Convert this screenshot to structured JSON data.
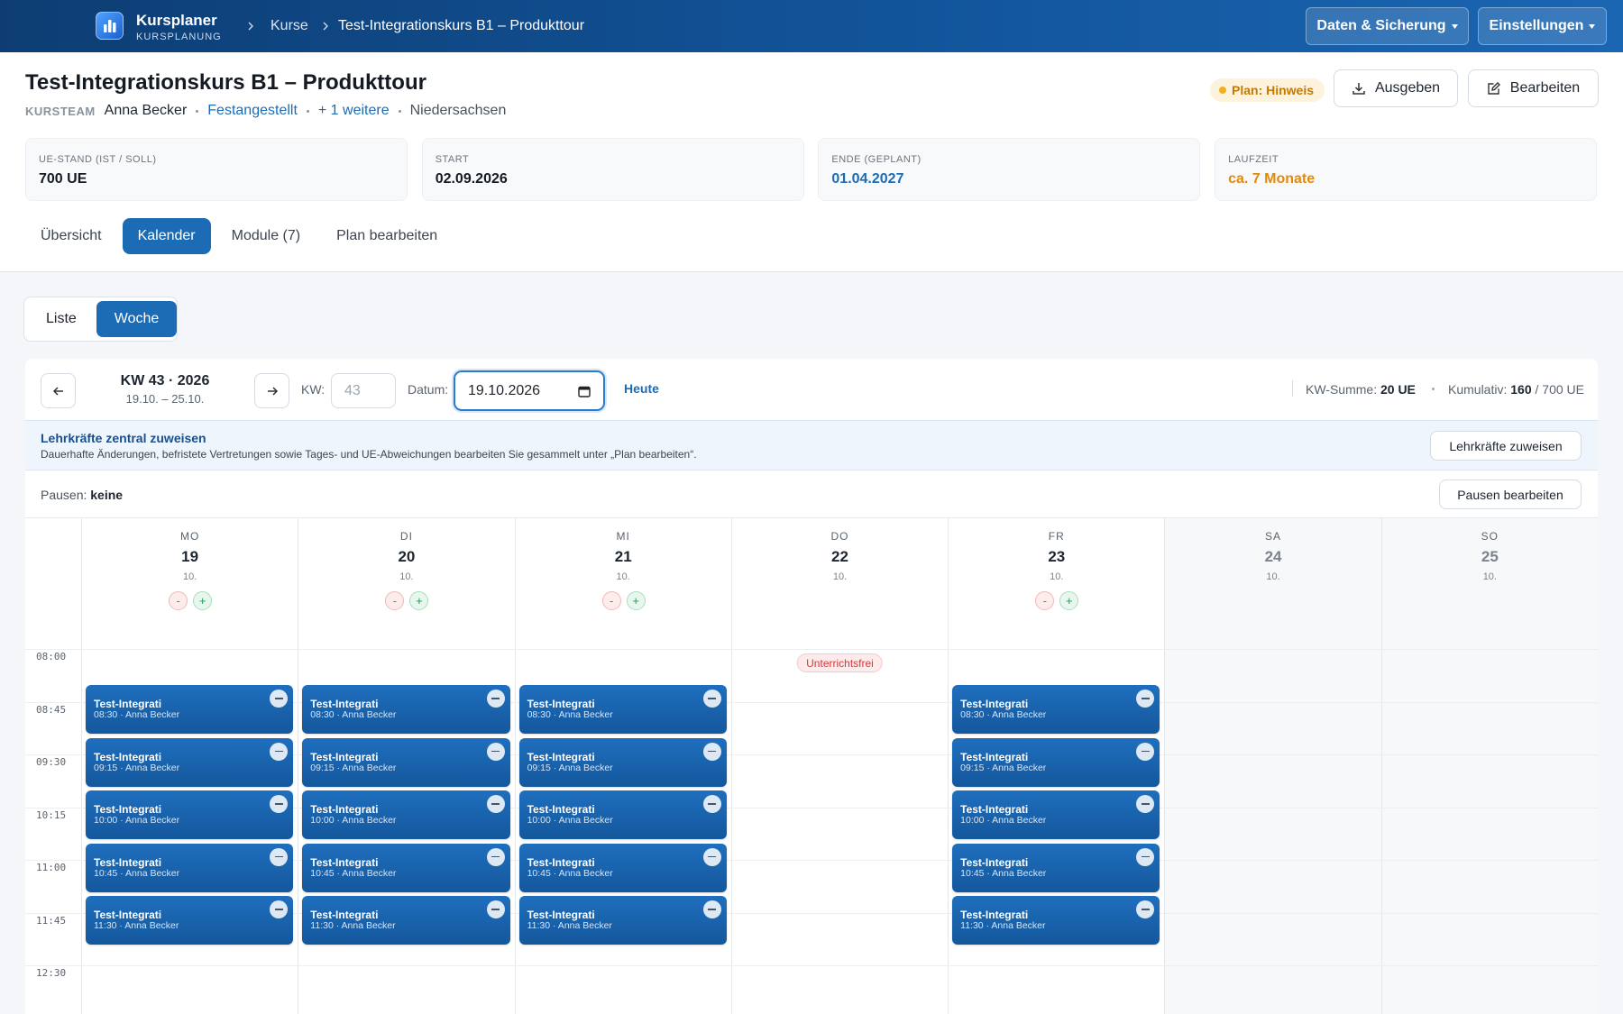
{
  "topbar": {
    "app_name": "Kursplaner",
    "app_sub": "KURSPLANUNG",
    "breadcrumbs": [
      "Kurse",
      "Test-Integrationskurs B1 – Produkttour"
    ],
    "menus": [
      "Daten & Sicherung",
      "Einstellungen"
    ]
  },
  "header": {
    "title": "Test-Integrationskurs B1 – Produkttour",
    "team_label": "KURSTEAM",
    "team_member": "Anna Becker",
    "links": [
      "Festangestellt",
      "+ 1 weitere"
    ],
    "region": "Niedersachsen",
    "status": "Plan: Hinweis",
    "actions": [
      "Ausgeben",
      "Bearbeiten"
    ]
  },
  "stats": [
    {
      "label": "UE-STAND (IST / SOLL)",
      "value": "700 UE"
    },
    {
      "label": "START",
      "value": "02.09.2026"
    },
    {
      "label": "ENDE (GEPLANT)",
      "value": "01.04.2027"
    },
    {
      "label": "LAUFZEIT",
      "value": "ca. 7 Monate"
    }
  ],
  "tabs": [
    "Übersicht",
    "Kalender",
    "Module (7)",
    "Plan bearbeiten"
  ],
  "view_toggle": [
    "Liste",
    "Woche"
  ],
  "week_nav": {
    "title": "KW 43 · 2026",
    "range": "19.10. – 25.10.",
    "kw_label": "KW:",
    "kw_value": "43",
    "date_label": "Datum:",
    "date_value": "19.10.2026",
    "today": "Heute",
    "sum_label": "KW-Summe:",
    "sum_value": "20 UE",
    "cum_label": "Kumulativ:",
    "cum_value": "160",
    "cum_total": "/ 700 UE"
  },
  "notice": {
    "title": "Lehrkräfte zentral zuweisen",
    "text": "Dauerhafte Änderungen, befristete Vertretungen sowie Tages- und UE-Abweichungen bearbeiten Sie gesammelt unter „Plan bearbeiten“.",
    "button": "Lehrkräfte zuweisen"
  },
  "pauses": {
    "label": "Pausen:",
    "value": "keine",
    "button": "Pausen bearbeiten"
  },
  "calendar": {
    "day_controls": [
      "-",
      "+"
    ],
    "times": [
      "08:00",
      "08:45",
      "09:30",
      "10:15",
      "11:00",
      "11:45",
      "12:30"
    ],
    "days": [
      {
        "dow": "MO",
        "day": "19",
        "month": "10.",
        "events": [
          {
            "title": "Test-Integrati",
            "meta": "08:30 · Anna Becker"
          },
          {
            "title": "Test-Integrati",
            "meta": "09:15 · Anna Becker"
          },
          {
            "title": "Test-Integrati",
            "meta": "10:00 · Anna Becker"
          },
          {
            "title": "Test-Integrati",
            "meta": "10:45 · Anna Becker"
          },
          {
            "title": "Test-Integrati",
            "meta": "11:30 · Anna Becker"
          }
        ]
      },
      {
        "dow": "DI",
        "day": "20",
        "month": "10.",
        "events": [
          {
            "title": "Test-Integrati",
            "meta": "08:30 · Anna Becker"
          },
          {
            "title": "Test-Integrati",
            "meta": "09:15 · Anna Becker"
          },
          {
            "title": "Test-Integrati",
            "meta": "10:00 · Anna Becker"
          },
          {
            "title": "Test-Integrati",
            "meta": "10:45 · Anna Becker"
          },
          {
            "title": "Test-Integrati",
            "meta": "11:30 · Anna Becker"
          }
        ]
      },
      {
        "dow": "MI",
        "day": "21",
        "month": "10.",
        "events": [
          {
            "title": "Test-Integrati",
            "meta": "08:30 · Anna Becker"
          },
          {
            "title": "Test-Integrati",
            "meta": "09:15 · Anna Becker"
          },
          {
            "title": "Test-Integrati",
            "meta": "10:00 · Anna Becker"
          },
          {
            "title": "Test-Integrati",
            "meta": "10:45 · Anna Becker"
          },
          {
            "title": "Test-Integrati",
            "meta": "11:30 · Anna Becker"
          }
        ]
      },
      {
        "dow": "DO",
        "day": "22",
        "month": "10.",
        "note": "Unterrichtsfrei",
        "events": []
      },
      {
        "dow": "FR",
        "day": "23",
        "month": "10.",
        "events": [
          {
            "title": "Test-Integrati",
            "meta": "08:30 · Anna Becker"
          },
          {
            "title": "Test-Integrati",
            "meta": "09:15 · Anna Becker"
          },
          {
            "title": "Test-Integrati",
            "meta": "10:00 · Anna Becker"
          },
          {
            "title": "Test-Integrati",
            "meta": "10:45 · Anna Becker"
          },
          {
            "title": "Test-Integrati",
            "meta": "11:30 · Anna Becker"
          }
        ]
      },
      {
        "dow": "SA",
        "day": "24",
        "month": "10.",
        "weekend": true,
        "events": []
      },
      {
        "dow": "SO",
        "day": "25",
        "month": "10.",
        "weekend": true,
        "events": []
      }
    ]
  }
}
